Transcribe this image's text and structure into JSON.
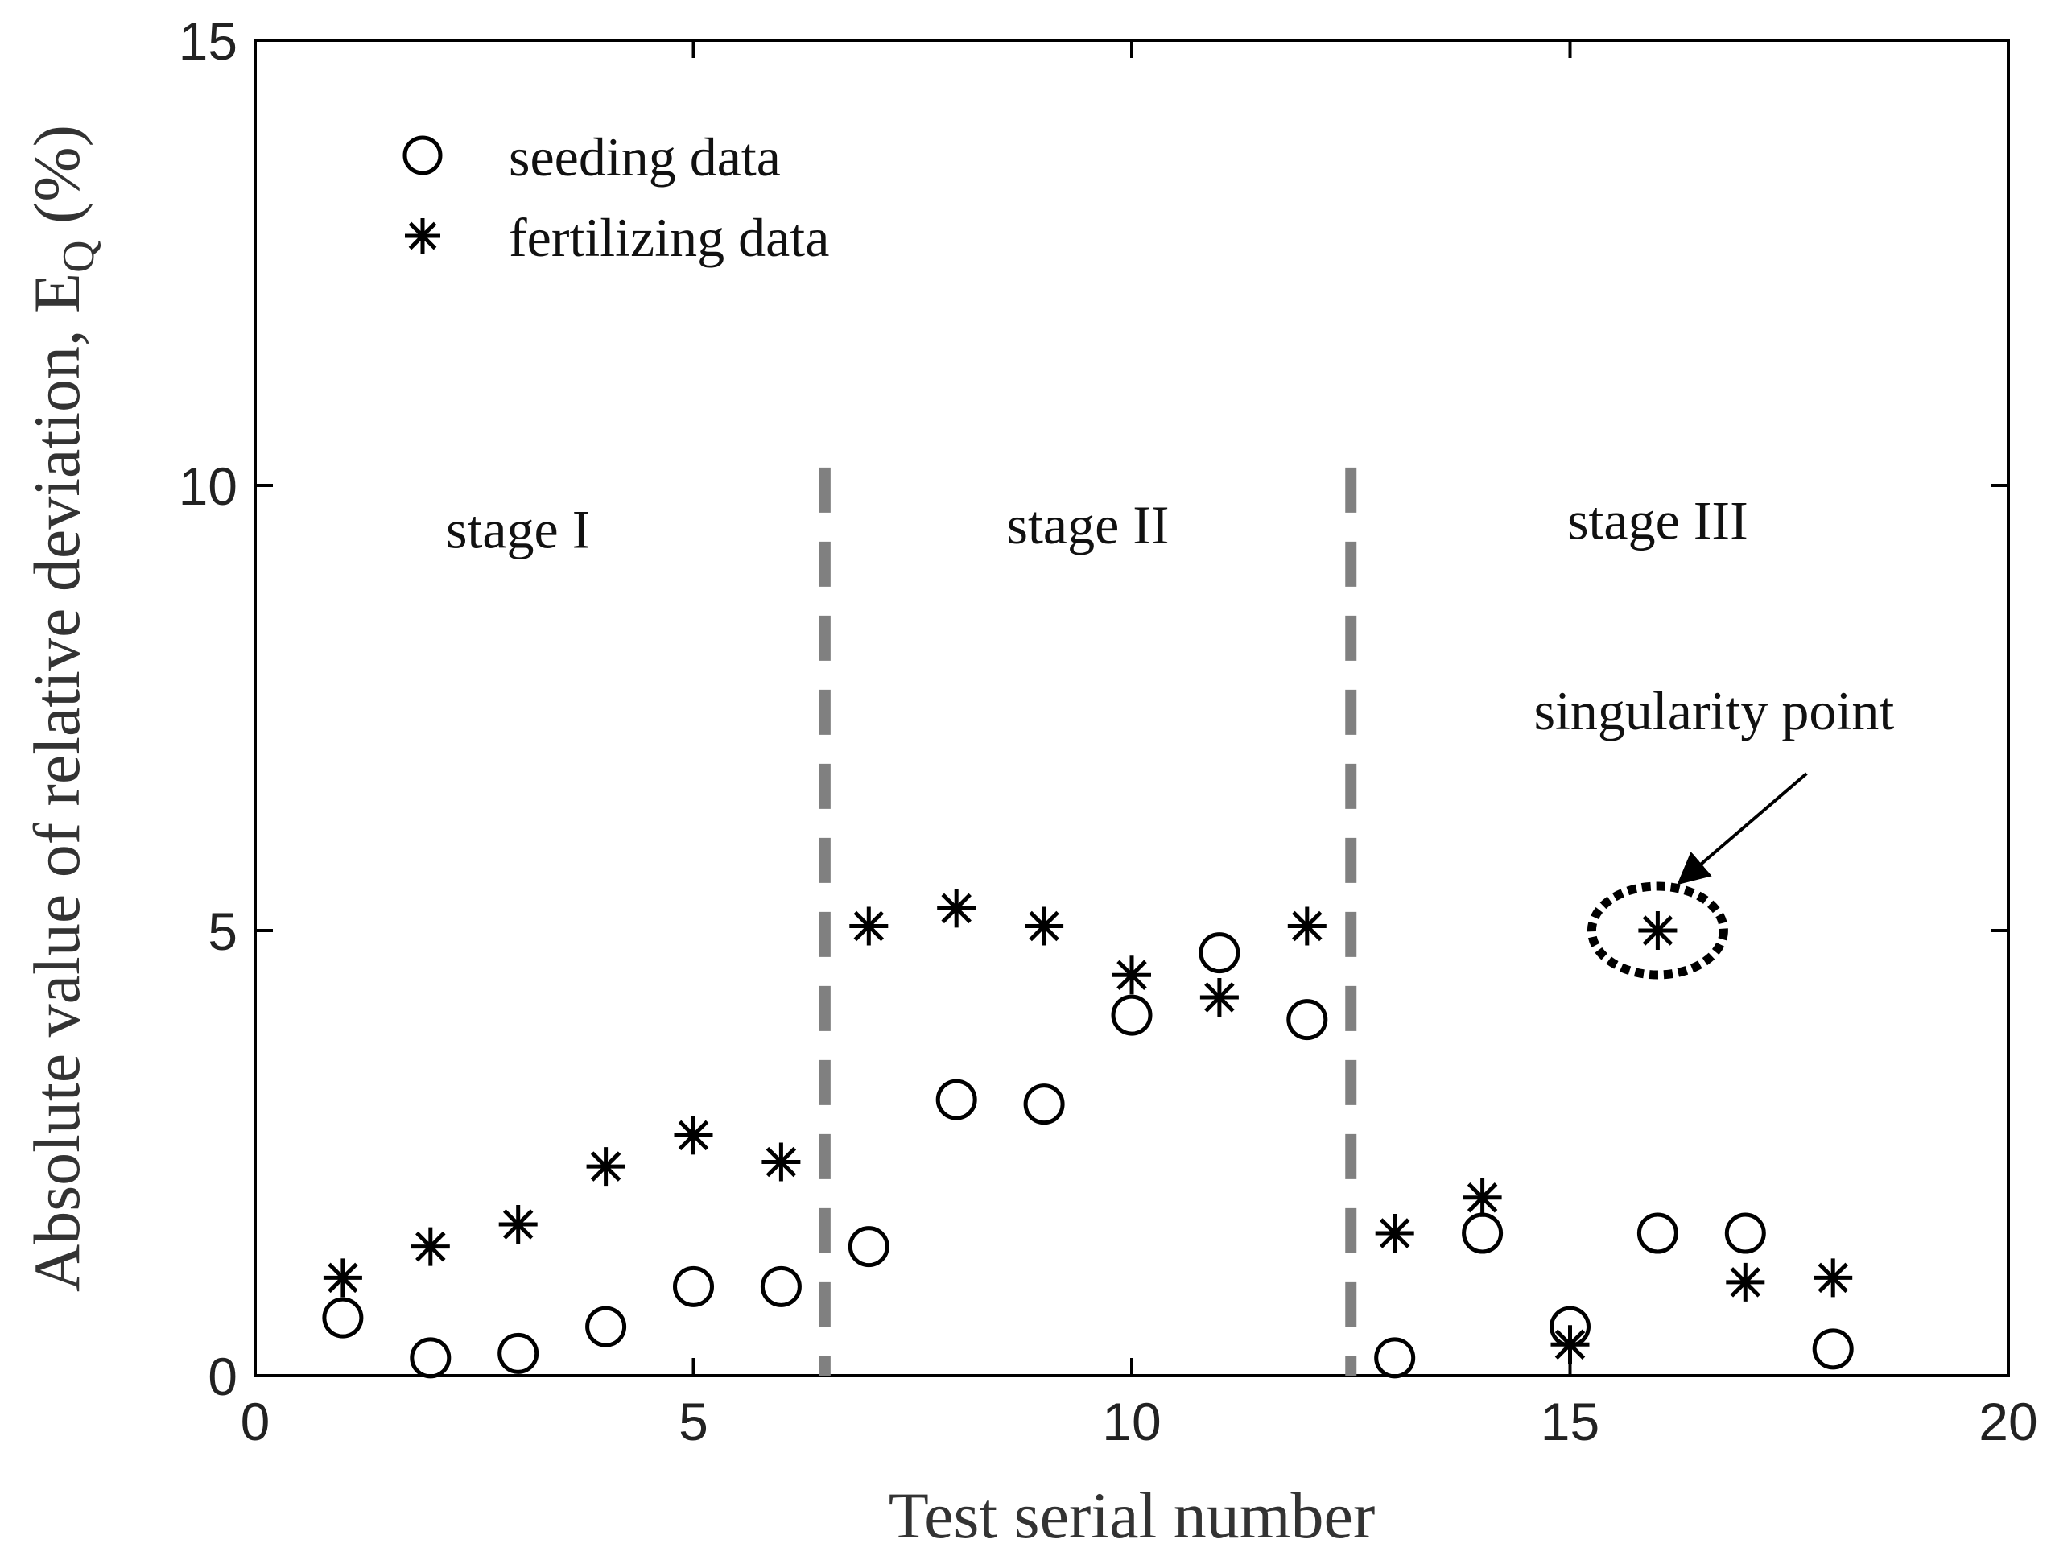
{
  "chart_data": {
    "type": "scatter",
    "title": "",
    "xlabel": "Test serial number",
    "ylabel": "Absolute value of relative deviation, E",
    "ylabel_subscript": "Q",
    "ylabel_unit": " (%)",
    "xlim": [
      0,
      20
    ],
    "ylim": [
      0,
      15
    ],
    "xticks": [
      0,
      5,
      10,
      15,
      20
    ],
    "yticks": [
      0,
      5,
      10,
      15
    ],
    "grid": false,
    "legend_position": "top-left",
    "series": [
      {
        "name": "seeding data",
        "marker": "circle",
        "x": [
          1,
          2,
          3,
          4,
          5,
          6,
          7,
          8,
          9,
          10,
          11,
          12,
          13,
          14,
          15,
          16,
          17,
          18
        ],
        "values": [
          0.65,
          0.2,
          0.25,
          0.55,
          1.0,
          1.0,
          1.45,
          3.1,
          3.05,
          4.05,
          4.75,
          4.0,
          0.2,
          1.6,
          0.55,
          1.6,
          1.6,
          0.3
        ]
      },
      {
        "name": "fertilizing data",
        "marker": "asterisk",
        "x": [
          1,
          2,
          3,
          4,
          5,
          6,
          7,
          8,
          9,
          10,
          11,
          12,
          13,
          14,
          15,
          16,
          17,
          18
        ],
        "values": [
          1.1,
          1.45,
          1.7,
          2.35,
          2.7,
          2.4,
          5.05,
          5.25,
          5.05,
          4.5,
          4.25,
          5.05,
          1.6,
          2.0,
          0.35,
          5.0,
          1.05,
          1.1
        ]
      }
    ],
    "stage_dividers": [
      6.5,
      12.5
    ],
    "stages": [
      {
        "label": "stage I",
        "x": 3.0,
        "y": 9.3
      },
      {
        "label": "stage II",
        "x": 9.5,
        "y": 9.35
      },
      {
        "label": "stage III",
        "x": 16.0,
        "y": 9.4
      }
    ],
    "annotation": {
      "text": "singularity point",
      "point_x": 16,
      "point_y": 5.0
    }
  }
}
